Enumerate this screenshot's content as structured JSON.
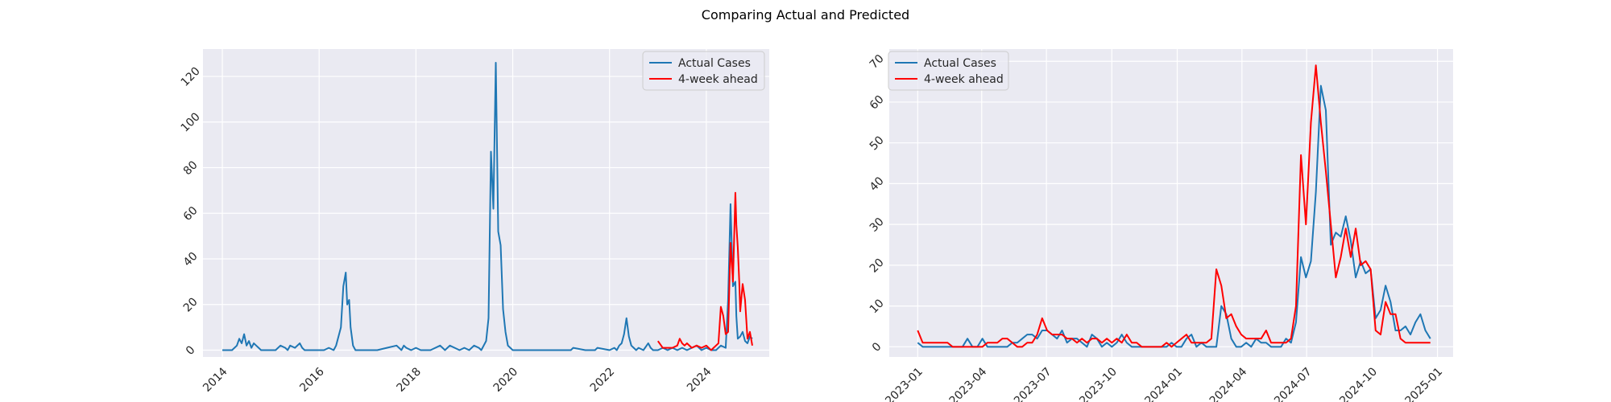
{
  "figure": {
    "suptitle": "Comparing Actual and Predicted"
  },
  "colors": {
    "actual": "#1f77b4",
    "predicted": "#ff0000",
    "plot_bg": "#eaeaf2",
    "grid": "#ffffff",
    "text": "#262626"
  },
  "chart_data": [
    {
      "type": "line",
      "legend_position": "upper right",
      "grid": true,
      "ylim": [
        -3,
        132
      ],
      "xlim": [
        2013.6,
        2025.3
      ],
      "x_ticks": [
        2014,
        2016,
        2018,
        2020,
        2022,
        2024
      ],
      "x_tick_labels": [
        "2014",
        "2016",
        "2018",
        "2020",
        "2022",
        "2024"
      ],
      "y_ticks": [
        0,
        20,
        40,
        60,
        80,
        100,
        120
      ],
      "y_tick_labels": [
        "0",
        "20",
        "40",
        "60",
        "80",
        "100",
        "120"
      ],
      "series": [
        {
          "name": "Actual Cases",
          "color": "#1f77b4",
          "x": [
            2014.0,
            2014.1,
            2014.2,
            2014.3,
            2014.35,
            2014.4,
            2014.45,
            2014.5,
            2014.55,
            2014.6,
            2014.65,
            2014.7,
            2014.75,
            2014.8,
            2014.9,
            2015.0,
            2015.1,
            2015.2,
            2015.3,
            2015.35,
            2015.4,
            2015.5,
            2015.6,
            2015.65,
            2015.7,
            2015.8,
            2015.9,
            2016.0,
            2016.1,
            2016.2,
            2016.3,
            2016.35,
            2016.4,
            2016.45,
            2016.5,
            2016.55,
            2016.58,
            2016.62,
            2016.65,
            2016.7,
            2016.75,
            2016.8,
            2016.9,
            2017.0,
            2017.2,
            2017.4,
            2017.6,
            2017.65,
            2017.7,
            2017.75,
            2017.8,
            2017.9,
            2018.0,
            2018.1,
            2018.2,
            2018.3,
            2018.5,
            2018.55,
            2018.6,
            2018.7,
            2018.8,
            2018.9,
            2019.0,
            2019.1,
            2019.2,
            2019.3,
            2019.35,
            2019.4,
            2019.45,
            2019.5,
            2019.55,
            2019.6,
            2019.65,
            2019.7,
            2019.75,
            2019.8,
            2019.85,
            2019.9,
            2019.95,
            2020.0,
            2020.2,
            2020.5,
            2021.0,
            2021.2,
            2021.25,
            2021.5,
            2021.7,
            2021.75,
            2022.0,
            2022.1,
            2022.15,
            2022.2,
            2022.25,
            2022.3,
            2022.35,
            2022.4,
            2022.45,
            2022.5,
            2022.55,
            2022.6,
            2022.7,
            2022.8,
            2022.85,
            2022.9,
            2023.0,
            2023.1,
            2023.2,
            2023.3,
            2023.4,
            2023.5,
            2023.6,
            2023.7,
            2023.8,
            2023.9,
            2024.0,
            2024.1,
            2024.2,
            2024.3,
            2024.4,
            2024.45,
            2024.5,
            2024.55,
            2024.6,
            2024.62,
            2024.65,
            2024.7,
            2024.75,
            2024.8,
            2024.85,
            2024.9,
            2024.95
          ],
          "values": [
            0,
            0,
            0,
            2,
            5,
            3,
            7,
            2,
            4,
            1,
            3,
            2,
            1,
            0,
            0,
            0,
            0,
            2,
            1,
            0,
            2,
            1,
            3,
            1,
            0,
            0,
            0,
            0,
            0,
            1,
            0,
            2,
            6,
            10,
            28,
            34,
            20,
            22,
            10,
            2,
            0,
            0,
            0,
            0,
            0,
            1,
            2,
            1,
            0,
            2,
            1,
            0,
            1,
            0,
            0,
            0,
            2,
            1,
            0,
            2,
            1,
            0,
            1,
            0,
            2,
            1,
            0,
            2,
            4,
            14,
            87,
            62,
            126,
            52,
            46,
            18,
            8,
            2,
            1,
            0,
            0,
            0,
            0,
            0,
            1,
            0,
            0,
            1,
            0,
            1,
            0,
            2,
            3,
            7,
            14,
            6,
            2,
            1,
            0,
            1,
            0,
            3,
            1,
            0,
            0,
            1,
            0,
            1,
            0,
            1,
            0,
            1,
            2,
            0,
            1,
            0,
            0,
            2,
            1,
            22,
            64,
            28,
            30,
            15,
            5,
            6,
            8,
            4,
            3,
            6,
            5
          ]
        },
        {
          "name": "4-week ahead",
          "color": "#ff0000",
          "x": [
            2023.0,
            2023.1,
            2023.2,
            2023.3,
            2023.4,
            2023.45,
            2023.5,
            2023.55,
            2023.6,
            2023.7,
            2023.8,
            2023.9,
            2024.0,
            2024.1,
            2024.15,
            2024.2,
            2024.25,
            2024.3,
            2024.35,
            2024.4,
            2024.45,
            2024.5,
            2024.55,
            2024.6,
            2024.62,
            2024.65,
            2024.68,
            2024.7,
            2024.75,
            2024.8,
            2024.85,
            2024.9,
            2024.95
          ],
          "values": [
            4,
            1,
            1,
            1,
            2,
            5,
            3,
            2,
            3,
            1,
            2,
            1,
            2,
            0,
            1,
            2,
            3,
            19,
            15,
            7,
            8,
            47,
            30,
            69,
            55,
            45,
            30,
            17,
            29,
            22,
            5,
            8,
            2
          ]
        }
      ]
    },
    {
      "type": "line",
      "legend_position": "upper left",
      "grid": true,
      "ylim": [
        -2.5,
        73
      ],
      "xlim": [
        "2022-11-22",
        "2025-01-23"
      ],
      "x_ticks": [
        "2023-01-01",
        "2023-04-01",
        "2023-07-01",
        "2023-10-01",
        "2024-01-01",
        "2024-04-01",
        "2024-07-01",
        "2024-10-01",
        "2025-01-01"
      ],
      "x_tick_labels": [
        "2023-01",
        "2023-04",
        "2023-07",
        "2023-10",
        "2024-01",
        "2024-04",
        "2024-07",
        "2024-10",
        "2025-01"
      ],
      "y_ticks": [
        0,
        10,
        20,
        30,
        40,
        50,
        60,
        70
      ],
      "y_tick_labels": [
        "0",
        "10",
        "20",
        "30",
        "40",
        "50",
        "60",
        "70"
      ],
      "series": [
        {
          "name": "Actual Cases",
          "color": "#1f77b4",
          "x": [
            "2023-01-01",
            "2023-01-08",
            "2023-01-15",
            "2023-01-22",
            "2023-01-29",
            "2023-02-05",
            "2023-02-12",
            "2023-02-19",
            "2023-02-26",
            "2023-03-05",
            "2023-03-12",
            "2023-03-19",
            "2023-03-26",
            "2023-04-02",
            "2023-04-09",
            "2023-04-16",
            "2023-04-23",
            "2023-04-30",
            "2023-05-07",
            "2023-05-14",
            "2023-05-21",
            "2023-05-28",
            "2023-06-04",
            "2023-06-11",
            "2023-06-18",
            "2023-06-25",
            "2023-07-02",
            "2023-07-09",
            "2023-07-16",
            "2023-07-23",
            "2023-07-30",
            "2023-08-06",
            "2023-08-13",
            "2023-08-20",
            "2023-08-27",
            "2023-09-03",
            "2023-09-10",
            "2023-09-17",
            "2023-09-24",
            "2023-10-01",
            "2023-10-08",
            "2023-10-15",
            "2023-10-22",
            "2023-10-29",
            "2023-11-05",
            "2023-11-12",
            "2023-11-19",
            "2023-11-26",
            "2023-12-03",
            "2023-12-10",
            "2023-12-17",
            "2023-12-24",
            "2023-12-31",
            "2024-01-07",
            "2024-01-14",
            "2024-01-21",
            "2024-01-28",
            "2024-02-04",
            "2024-02-11",
            "2024-02-18",
            "2024-02-25",
            "2024-03-03",
            "2024-03-10",
            "2024-03-17",
            "2024-03-24",
            "2024-03-31",
            "2024-04-07",
            "2024-04-14",
            "2024-04-21",
            "2024-04-28",
            "2024-05-05",
            "2024-05-12",
            "2024-05-19",
            "2024-05-26",
            "2024-06-02",
            "2024-06-09",
            "2024-06-16",
            "2024-06-23",
            "2024-06-30",
            "2024-07-07",
            "2024-07-14",
            "2024-07-21",
            "2024-07-28",
            "2024-08-04",
            "2024-08-11",
            "2024-08-18",
            "2024-08-25",
            "2024-09-01",
            "2024-09-08",
            "2024-09-15",
            "2024-09-22",
            "2024-09-29",
            "2024-10-06",
            "2024-10-13",
            "2024-10-20",
            "2024-10-27",
            "2024-11-03",
            "2024-11-10",
            "2024-11-17",
            "2024-11-24",
            "2024-12-01",
            "2024-12-08",
            "2024-12-15",
            "2024-12-22"
          ],
          "values": [
            1,
            0,
            0,
            0,
            0,
            0,
            0,
            0,
            0,
            0,
            2,
            0,
            0,
            2,
            0,
            0,
            0,
            0,
            0,
            1,
            1,
            2,
            3,
            3,
            2,
            4,
            4,
            3,
            2,
            4,
            1,
            2,
            2,
            1,
            0,
            3,
            2,
            0,
            1,
            0,
            1,
            3,
            1,
            0,
            0,
            0,
            0,
            0,
            0,
            0,
            0,
            1,
            0,
            0,
            2,
            3,
            0,
            1,
            0,
            0,
            0,
            10,
            8,
            2,
            0,
            0,
            1,
            0,
            2,
            1,
            1,
            0,
            0,
            0,
            2,
            1,
            6,
            22,
            17,
            21,
            38,
            64,
            58,
            25,
            28,
            27,
            32,
            26,
            17,
            21,
            18,
            19,
            7,
            9,
            15,
            11,
            4,
            4,
            5,
            3,
            6,
            8,
            4,
            2
          ]
        },
        {
          "name": "4-week ahead",
          "color": "#ff0000",
          "x": [
            "2023-01-01",
            "2023-01-08",
            "2023-01-15",
            "2023-01-22",
            "2023-01-29",
            "2023-02-05",
            "2023-02-12",
            "2023-02-19",
            "2023-02-26",
            "2023-03-05",
            "2023-03-12",
            "2023-03-19",
            "2023-03-26",
            "2023-04-02",
            "2023-04-09",
            "2023-04-16",
            "2023-04-23",
            "2023-04-30",
            "2023-05-07",
            "2023-05-14",
            "2023-05-21",
            "2023-05-28",
            "2023-06-04",
            "2023-06-11",
            "2023-06-18",
            "2023-06-25",
            "2023-07-02",
            "2023-07-09",
            "2023-07-16",
            "2023-07-23",
            "2023-07-30",
            "2023-08-06",
            "2023-08-13",
            "2023-08-20",
            "2023-08-27",
            "2023-09-03",
            "2023-09-10",
            "2023-09-17",
            "2023-09-24",
            "2023-10-01",
            "2023-10-08",
            "2023-10-15",
            "2023-10-22",
            "2023-10-29",
            "2023-11-05",
            "2023-11-12",
            "2023-11-19",
            "2023-11-26",
            "2023-12-03",
            "2023-12-10",
            "2023-12-17",
            "2023-12-24",
            "2023-12-31",
            "2024-01-07",
            "2024-01-14",
            "2024-01-21",
            "2024-01-28",
            "2024-02-04",
            "2024-02-11",
            "2024-02-18",
            "2024-02-25",
            "2024-03-03",
            "2024-03-10",
            "2024-03-17",
            "2024-03-24",
            "2024-03-31",
            "2024-04-07",
            "2024-04-14",
            "2024-04-21",
            "2024-04-28",
            "2024-05-05",
            "2024-05-12",
            "2024-05-19",
            "2024-05-26",
            "2024-06-02",
            "2024-06-09",
            "2024-06-16",
            "2024-06-23",
            "2024-06-30",
            "2024-07-07",
            "2024-07-14",
            "2024-07-21",
            "2024-07-28",
            "2024-08-04",
            "2024-08-11",
            "2024-08-18",
            "2024-08-25",
            "2024-09-01",
            "2024-09-08",
            "2024-09-15",
            "2024-09-22",
            "2024-09-29",
            "2024-10-06",
            "2024-10-13",
            "2024-10-20",
            "2024-10-27",
            "2024-11-03",
            "2024-11-10",
            "2024-11-17",
            "2024-11-24",
            "2024-12-01",
            "2024-12-08",
            "2024-12-15",
            "2024-12-22"
          ],
          "values": [
            4,
            1,
            1,
            1,
            1,
            1,
            1,
            0,
            0,
            0,
            0,
            0,
            0,
            0,
            1,
            1,
            1,
            2,
            2,
            1,
            0,
            0,
            1,
            1,
            3,
            7,
            4,
            3,
            3,
            3,
            2,
            2,
            1,
            2,
            1,
            2,
            2,
            1,
            2,
            1,
            2,
            1,
            3,
            1,
            1,
            0,
            0,
            0,
            0,
            0,
            1,
            0,
            1,
            2,
            3,
            1,
            1,
            1,
            1,
            2,
            19,
            15,
            7,
            8,
            5,
            3,
            2,
            2,
            2,
            2,
            4,
            1,
            1,
            1,
            1,
            2,
            10,
            47,
            30,
            55,
            69,
            55,
            43,
            30,
            17,
            22,
            29,
            22,
            29,
            20,
            21,
            19,
            4,
            3,
            11,
            8,
            8,
            2,
            1,
            1,
            1,
            1,
            1,
            1
          ]
        }
      ]
    }
  ]
}
